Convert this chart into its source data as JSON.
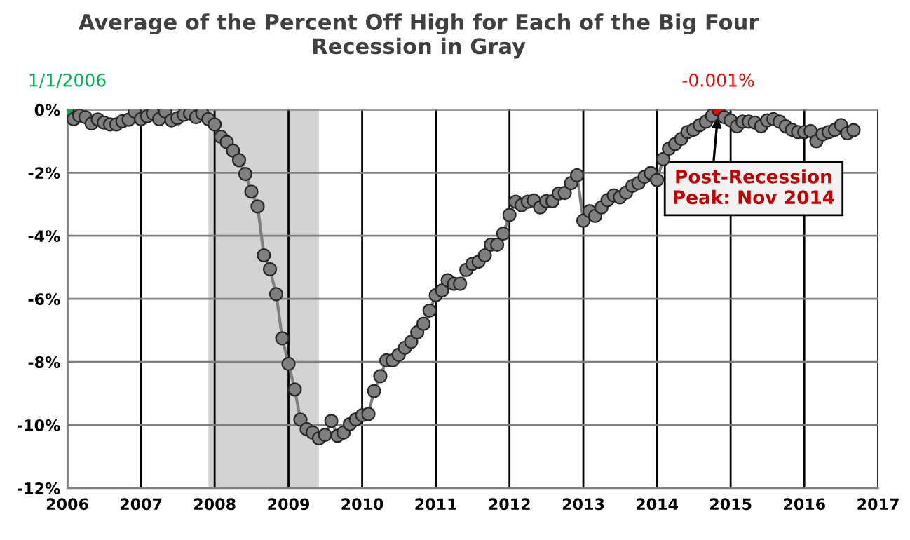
{
  "chart_data": {
    "type": "line",
    "title": "Average of the Percent Off High for Each of the Big Four\nRecession in Gray",
    "x": [
      "2006-01",
      "2006-02",
      "2006-03",
      "2006-04",
      "2006-05",
      "2006-06",
      "2006-07",
      "2006-08",
      "2006-09",
      "2006-10",
      "2006-11",
      "2006-12",
      "2007-01",
      "2007-02",
      "2007-03",
      "2007-04",
      "2007-05",
      "2007-06",
      "2007-07",
      "2007-08",
      "2007-09",
      "2007-10",
      "2007-11",
      "2007-12",
      "2008-01",
      "2008-02",
      "2008-03",
      "2008-04",
      "2008-05",
      "2008-06",
      "2008-07",
      "2008-08",
      "2008-09",
      "2008-10",
      "2008-11",
      "2008-12",
      "2009-01",
      "2009-02",
      "2009-03",
      "2009-04",
      "2009-05",
      "2009-06",
      "2009-07",
      "2009-08",
      "2009-09",
      "2009-10",
      "2009-11",
      "2009-12",
      "2010-01",
      "2010-02",
      "2010-03",
      "2010-04",
      "2010-05",
      "2010-06",
      "2010-07",
      "2010-08",
      "2010-09",
      "2010-10",
      "2010-11",
      "2010-12",
      "2011-01",
      "2011-02",
      "2011-03",
      "2011-04",
      "2011-05",
      "2011-06",
      "2011-07",
      "2011-08",
      "2011-09",
      "2011-10",
      "2011-11",
      "2011-12",
      "2012-01",
      "2012-02",
      "2012-03",
      "2012-04",
      "2012-05",
      "2012-06",
      "2012-07",
      "2012-08",
      "2012-09",
      "2012-10",
      "2012-11",
      "2012-12",
      "2013-01",
      "2013-02",
      "2013-03",
      "2013-04",
      "2013-05",
      "2013-06",
      "2013-07",
      "2013-08",
      "2013-09",
      "2013-10",
      "2013-11",
      "2013-12",
      "2014-01",
      "2014-02",
      "2014-03",
      "2014-04",
      "2014-05",
      "2014-06",
      "2014-07",
      "2014-08",
      "2014-09",
      "2014-10",
      "2014-11",
      "2014-12",
      "2015-01",
      "2015-02",
      "2015-03",
      "2015-04",
      "2015-05",
      "2015-06",
      "2015-07",
      "2015-08",
      "2015-09",
      "2015-10",
      "2015-11",
      "2015-12",
      "2016-01",
      "2016-02",
      "2016-03",
      "2016-04",
      "2016-05",
      "2016-06",
      "2016-07",
      "2016-08",
      "2016-09"
    ],
    "series": [
      {
        "color": "#7f7f7f",
        "values": [
          0,
          -0.3,
          -0.19,
          -0.24,
          -0.44,
          -0.31,
          -0.41,
          -0.47,
          -0.47,
          -0.37,
          -0.32,
          -0.06,
          -0.3,
          -0.21,
          -0.12,
          -0.3,
          -0.06,
          -0.34,
          -0.27,
          -0.16,
          -0.12,
          -0.24,
          -0.12,
          -0.3,
          -0.47,
          -0.86,
          -1.03,
          -1.3,
          -1.6,
          -2.04,
          -2.6,
          -3.07,
          -4.62,
          -5.06,
          -5.85,
          -7.25,
          -8.06,
          -8.87,
          -9.83,
          -10.13,
          -10.24,
          -10.42,
          -10.31,
          -9.87,
          -10.34,
          -10.24,
          -9.97,
          -9.82,
          -9.69,
          -9.65,
          -8.92,
          -8.45,
          -7.95,
          -7.95,
          -7.77,
          -7.55,
          -7.36,
          -7.06,
          -6.79,
          -6.37,
          -5.88,
          -5.73,
          -5.41,
          -5.52,
          -5.52,
          -5.08,
          -4.89,
          -4.82,
          -4.62,
          -4.28,
          -4.28,
          -3.93,
          -3.34,
          -2.92,
          -3.03,
          -2.92,
          -2.88,
          -3.1,
          -2.9,
          -2.9,
          -2.66,
          -2.64,
          -2.33,
          -2.08,
          -3.52,
          -3.22,
          -3.37,
          -3.1,
          -2.87,
          -2.72,
          -2.78,
          -2.63,
          -2.42,
          -2.33,
          -2.13,
          -2.01,
          -2.23,
          -1.57,
          -1.24,
          -1.09,
          -0.93,
          -0.71,
          -0.64,
          -0.49,
          -0.38,
          -0.19,
          -0.001,
          -0.24,
          -0.34,
          -0.53,
          -0.38,
          -0.38,
          -0.41,
          -0.53,
          -0.34,
          -0.3,
          -0.38,
          -0.53,
          -0.64,
          -0.71,
          -0.71,
          -0.68,
          -1.0,
          -0.78,
          -0.71,
          -0.64,
          -0.49,
          -0.75,
          -0.65
        ],
        "colors": [
          "#00b050",
          "#7f7f7f",
          "#7f7f7f",
          "#7f7f7f",
          "#7f7f7f",
          "#7f7f7f",
          "#7f7f7f",
          "#7f7f7f",
          "#7f7f7f",
          "#7f7f7f",
          "#7f7f7f",
          "#7f7f7f",
          "#7f7f7f",
          "#7f7f7f",
          "#7f7f7f",
          "#7f7f7f",
          "#7f7f7f",
          "#7f7f7f",
          "#7f7f7f",
          "#7f7f7f",
          "#7f7f7f",
          "#7f7f7f",
          "#7f7f7f",
          "#7f7f7f",
          "#7f7f7f",
          "#7f7f7f",
          "#7f7f7f",
          "#7f7f7f",
          "#7f7f7f",
          "#7f7f7f",
          "#7f7f7f",
          "#7f7f7f",
          "#7f7f7f",
          "#7f7f7f",
          "#7f7f7f",
          "#7f7f7f",
          "#7f7f7f",
          "#7f7f7f",
          "#7f7f7f",
          "#7f7f7f",
          "#7f7f7f",
          "#7f7f7f",
          "#7f7f7f",
          "#7f7f7f",
          "#7f7f7f",
          "#7f7f7f",
          "#7f7f7f",
          "#7f7f7f",
          "#7f7f7f",
          "#7f7f7f",
          "#7f7f7f",
          "#7f7f7f",
          "#7f7f7f",
          "#7f7f7f",
          "#7f7f7f",
          "#7f7f7f",
          "#7f7f7f",
          "#7f7f7f",
          "#7f7f7f",
          "#7f7f7f",
          "#7f7f7f",
          "#7f7f7f",
          "#7f7f7f",
          "#7f7f7f",
          "#7f7f7f",
          "#7f7f7f",
          "#7f7f7f",
          "#7f7f7f",
          "#7f7f7f",
          "#7f7f7f",
          "#7f7f7f",
          "#7f7f7f",
          "#7f7f7f",
          "#7f7f7f",
          "#7f7f7f",
          "#7f7f7f",
          "#7f7f7f",
          "#7f7f7f",
          "#7f7f7f",
          "#7f7f7f",
          "#7f7f7f",
          "#7f7f7f",
          "#7f7f7f",
          "#7f7f7f",
          "#7f7f7f",
          "#7f7f7f",
          "#7f7f7f",
          "#7f7f7f",
          "#7f7f7f",
          "#7f7f7f",
          "#7f7f7f",
          "#7f7f7f",
          "#7f7f7f",
          "#7f7f7f",
          "#7f7f7f",
          "#7f7f7f",
          "#7f7f7f",
          "#7f7f7f",
          "#7f7f7f",
          "#7f7f7f",
          "#7f7f7f",
          "#7f7f7f",
          "#7f7f7f",
          "#7f7f7f",
          "#7f7f7f",
          "#7f7f7f",
          "#ff0000",
          "#7f7f7f",
          "#7f7f7f",
          "#7f7f7f",
          "#7f7f7f",
          "#7f7f7f",
          "#7f7f7f",
          "#7f7f7f",
          "#7f7f7f",
          "#7f7f7f",
          "#7f7f7f",
          "#7f7f7f",
          "#7f7f7f",
          "#7f7f7f",
          "#7f7f7f",
          "#7f7f7f",
          "#7f7f7f",
          "#7f7f7f",
          "#7f7f7f",
          "#7f7f7f",
          "#7f7f7f",
          "#7f7f7f",
          "#7f7f7f"
        ]
      }
    ],
    "marker": "circle",
    "line_style": "solid",
    "grid": true,
    "xlim": [
      "2006",
      "2017"
    ],
    "xticks": [
      "2006",
      "2007",
      "2008",
      "2009",
      "2010",
      "2011",
      "2012",
      "2013",
      "2014",
      "2015",
      "2016",
      "2017"
    ],
    "ylim": [
      -12,
      0
    ],
    "yticks": [
      {
        "value": 0,
        "label": "0%"
      },
      {
        "value": -2,
        "label": "-2%"
      },
      {
        "value": -4,
        "label": "-4%"
      },
      {
        "value": -6,
        "label": "-6%"
      },
      {
        "value": -8,
        "label": "-8%"
      },
      {
        "value": -10,
        "label": "-10%"
      },
      {
        "value": -12,
        "label": "-12%"
      }
    ],
    "bands": [
      {
        "axis": "x",
        "from": "2007-12",
        "to": "2009-06",
        "color": "#d3d3d3"
      }
    ],
    "annotations": [
      {
        "text": "1/1/2006",
        "x": "2006-01",
        "y": 0
      },
      {
        "text": "-0.001%",
        "x": "2014-11",
        "y": -0.001
      },
      {
        "text": "Post-Recession\nPeak: Nov 2014",
        "x": "2014-11",
        "y": -0.001
      }
    ]
  }
}
